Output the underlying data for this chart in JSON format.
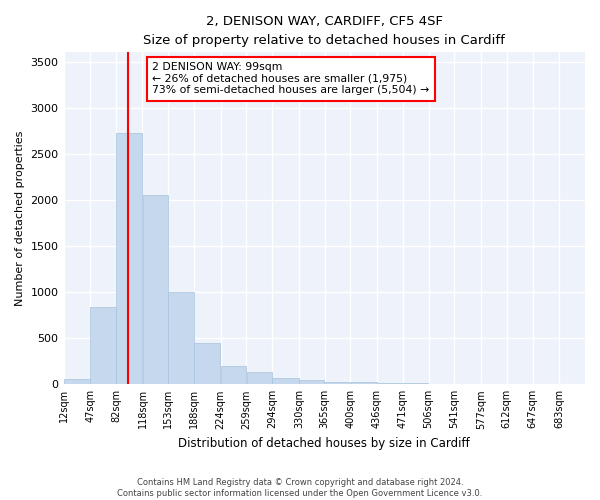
{
  "title": "2, DENISON WAY, CARDIFF, CF5 4SF",
  "subtitle": "Size of property relative to detached houses in Cardiff",
  "xlabel": "Distribution of detached houses by size in Cardiff",
  "ylabel": "Number of detached properties",
  "bar_color": "#c5d8ed",
  "bar_edgecolor": "#a8c4dc",
  "vline_x": 99,
  "vline_color": "red",
  "annotation_text": "2 DENISON WAY: 99sqm\n← 26% of detached houses are smaller (1,975)\n73% of semi-detached houses are larger (5,504) →",
  "annotation_box_color": "white",
  "annotation_box_edgecolor": "red",
  "bins": [
    12,
    47,
    82,
    118,
    153,
    188,
    224,
    259,
    294,
    330,
    365,
    400,
    436,
    471,
    506,
    541,
    577,
    612,
    647,
    683,
    718
  ],
  "bar_heights": [
    60,
    840,
    2720,
    2050,
    1000,
    450,
    200,
    130,
    65,
    50,
    30,
    20,
    15,
    10,
    8,
    5,
    3,
    2,
    1,
    1
  ],
  "ylim": [
    0,
    3600
  ],
  "yticks": [
    0,
    500,
    1000,
    1500,
    2000,
    2500,
    3000,
    3500
  ],
  "footnote": "Contains HM Land Registry data © Crown copyright and database right 2024.\nContains public sector information licensed under the Open Government Licence v3.0.",
  "background_color": "#eef2fa",
  "grid_color": "white",
  "fig_width": 6.0,
  "fig_height": 5.0
}
